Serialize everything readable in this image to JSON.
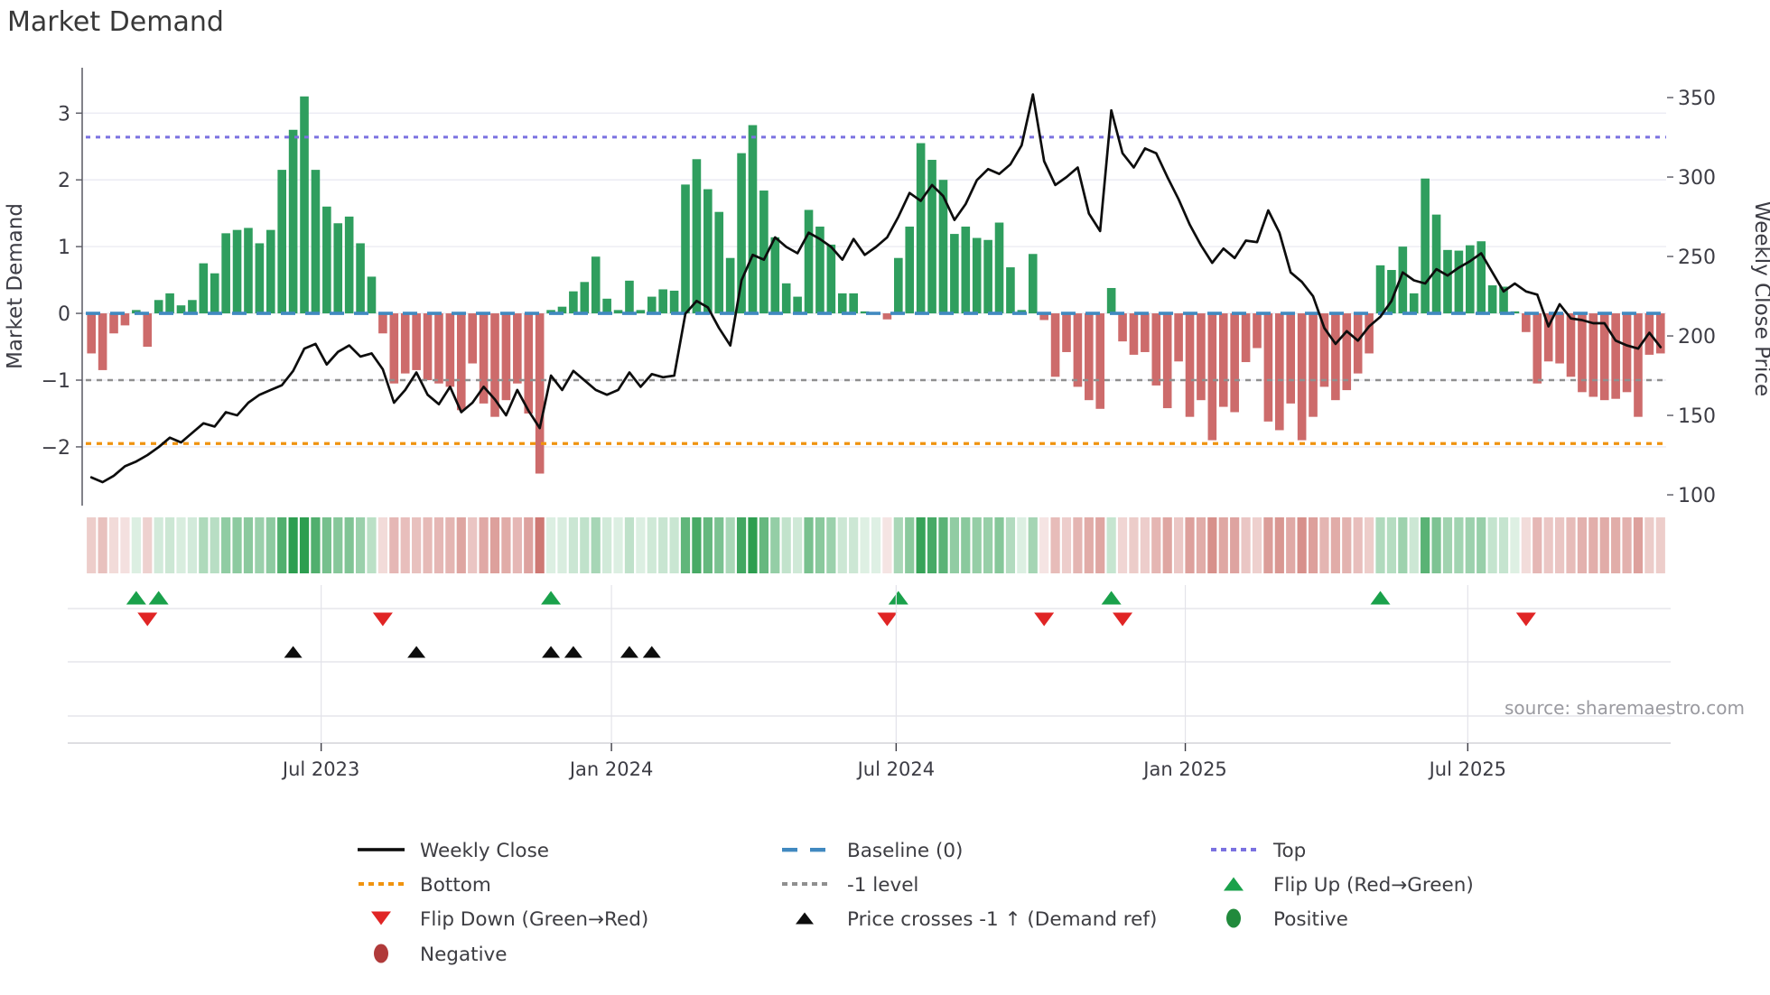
{
  "title": "Market Demand",
  "source": "source: sharemaestro.com",
  "axes": {
    "left_title": "Market Demand",
    "right_title": "Weekly Close Price",
    "left_ticks": [
      "3",
      "2",
      "1",
      "0",
      "−1",
      "−2"
    ],
    "left_tick_values": [
      3,
      2,
      1,
      0,
      -1,
      -2
    ],
    "right_ticks": [
      "350",
      "300",
      "250",
      "200",
      "150",
      "100"
    ],
    "right_tick_values": [
      350,
      300,
      250,
      200,
      150,
      100
    ],
    "x_ticks": [
      "Jul 2023",
      "Jan 2024",
      "Jul 2024",
      "Jan 2025",
      "Jul 2025"
    ],
    "x_tick_weeks": [
      20.5,
      46.4,
      71.8,
      97.6,
      122.8
    ]
  },
  "chart_data": {
    "type": "bar+line",
    "x_unit": "week",
    "n_weeks": 141,
    "ylim_left": [
      -2.88,
      3.68
    ],
    "ylim_right": [
      93.2,
      368.8
    ],
    "series": [
      {
        "name": "Market Demand",
        "type": "bar",
        "axis": "left",
        "values": [
          -0.6,
          -0.85,
          -0.3,
          -0.18,
          0.05,
          -0.5,
          0.2,
          0.3,
          0.12,
          0.2,
          0.75,
          0.6,
          1.2,
          1.25,
          1.28,
          1.05,
          1.25,
          2.15,
          2.75,
          3.25,
          2.15,
          1.6,
          1.35,
          1.45,
          1.05,
          0.55,
          -0.3,
          -1.05,
          -0.9,
          -0.85,
          -1.0,
          -1.05,
          -1.1,
          -1.45,
          -0.75,
          -1.35,
          -1.55,
          -1.3,
          -1.05,
          -1.5,
          -2.4,
          0.05,
          0.1,
          0.33,
          0.47,
          0.85,
          0.22,
          0.05,
          0.49,
          0.05,
          0.25,
          0.36,
          0.34,
          1.93,
          2.31,
          1.86,
          1.52,
          0.83,
          2.4,
          2.82,
          1.84,
          1.14,
          0.45,
          0.25,
          1.55,
          1.3,
          1.03,
          0.3,
          0.3,
          0.03,
          0.02,
          -0.09,
          0.83,
          1.3,
          2.55,
          2.3,
          2.0,
          1.19,
          1.3,
          1.13,
          1.1,
          1.36,
          0.69,
          0.05,
          0.89,
          -0.1,
          -0.95,
          -0.58,
          -1.1,
          -1.3,
          -1.43,
          0.38,
          -0.42,
          -0.62,
          -0.58,
          -1.08,
          -1.42,
          -0.72,
          -1.55,
          -1.3,
          -1.9,
          -1.4,
          -1.48,
          -0.73,
          -0.52,
          -1.62,
          -1.75,
          -1.35,
          -1.9,
          -1.55,
          -1.1,
          -1.3,
          -1.15,
          -0.9,
          -0.6,
          0.72,
          0.65,
          1.0,
          0.3,
          2.02,
          1.48,
          0.95,
          0.94,
          1.02,
          1.08,
          0.42,
          0.4,
          0.03,
          -0.28,
          -1.05,
          -0.72,
          -0.75,
          -0.95,
          -1.18,
          -1.25,
          -1.3,
          -1.28,
          -1.18,
          -1.55,
          -0.62,
          -0.6
        ]
      },
      {
        "name": "Weekly Close",
        "type": "line",
        "axis": "right",
        "values": [
          111,
          108,
          112,
          118,
          121,
          125,
          130,
          136,
          133,
          139,
          145,
          143,
          152,
          150,
          158,
          163,
          166,
          169,
          178,
          192,
          195,
          182,
          190,
          194,
          187,
          189,
          179,
          158,
          166,
          177,
          163,
          157,
          168,
          152,
          158,
          168,
          160,
          150,
          166,
          153,
          142,
          175,
          166,
          178,
          172,
          166,
          163,
          166,
          177,
          168,
          176,
          174,
          175,
          214,
          222,
          218,
          205,
          194,
          235,
          251,
          248,
          262,
          256,
          252,
          265,
          261,
          256,
          248,
          261,
          251,
          256,
          262,
          275,
          290,
          285,
          295,
          288,
          273,
          283,
          298,
          305,
          302,
          308,
          320,
          352,
          310,
          295,
          300,
          306,
          277,
          266,
          342,
          315,
          306,
          318,
          315,
          300,
          286,
          270,
          257,
          246,
          255,
          249,
          260,
          259,
          279,
          265,
          240,
          234,
          225,
          205,
          195,
          203,
          197,
          206,
          212,
          222,
          240,
          235,
          233,
          242,
          238,
          243,
          247,
          252,
          240,
          228,
          233,
          228,
          226,
          206,
          220,
          211,
          210,
          208,
          208,
          197,
          194,
          192,
          202,
          193
        ]
      }
    ],
    "reference_lines": {
      "baseline": 0,
      "top": 2.64,
      "bottom": -1.95,
      "minus_one": -1
    },
    "markers": {
      "flip_up_weeks": [
        4,
        6,
        41,
        72,
        91,
        115
      ],
      "flip_down_weeks": [
        5,
        26,
        71,
        85,
        92,
        128
      ],
      "price_cross_weeks": [
        18,
        29,
        41,
        43,
        48,
        50
      ]
    },
    "heatmap": {
      "derived_from": "Market Demand"
    },
    "grid": "horizontal",
    "legend_position": "bottom"
  },
  "legend": {
    "columns": [
      [
        {
          "icon": "line-black",
          "label": "Weekly Close"
        },
        {
          "icon": "dotted-orange",
          "label": "Bottom"
        },
        {
          "icon": "triangle-down-red",
          "label": "Flip Down (Green→Red)"
        },
        {
          "icon": "circle-darkred",
          "label": "Negative"
        }
      ],
      [
        {
          "icon": "dash-blue",
          "label": "Baseline (0)"
        },
        {
          "icon": "dotted-gray",
          "label": "-1 level"
        },
        {
          "icon": "triangle-up-black",
          "label": "Price crosses -1 ↑ (Demand ref)"
        }
      ],
      [
        {
          "icon": "dotted-purple",
          "label": "Top"
        },
        {
          "icon": "triangle-up-green",
          "label": "Flip Up (Red→Green)"
        },
        {
          "icon": "circle-green",
          "label": "Positive"
        }
      ]
    ]
  },
  "colors": {
    "bar_positive": "#2f9e5e",
    "bar_negative": "#cd6b6b",
    "price_line": "#0d0d0d",
    "baseline": "#4189c0",
    "top_line": "#7b72e0",
    "bottom_line": "#f0930f",
    "minus_one_line": "#8f8f8f",
    "flip_up": "#1aa14b",
    "flip_down": "#e02525",
    "price_cross": "#0d0d0d",
    "negative_dot": "#b03a3a",
    "positive_dot": "#218a3c",
    "heat_green": "#2d9e50",
    "heat_red": "#c96a64",
    "grid": "#eaeaf2",
    "panel_line": "#d9d9e0",
    "panel_vline": "#e3e3ea",
    "spine": "#585862",
    "tick_text": "#3c3c44",
    "title_text": "#383838",
    "source_text": "#9a9aa0"
  }
}
